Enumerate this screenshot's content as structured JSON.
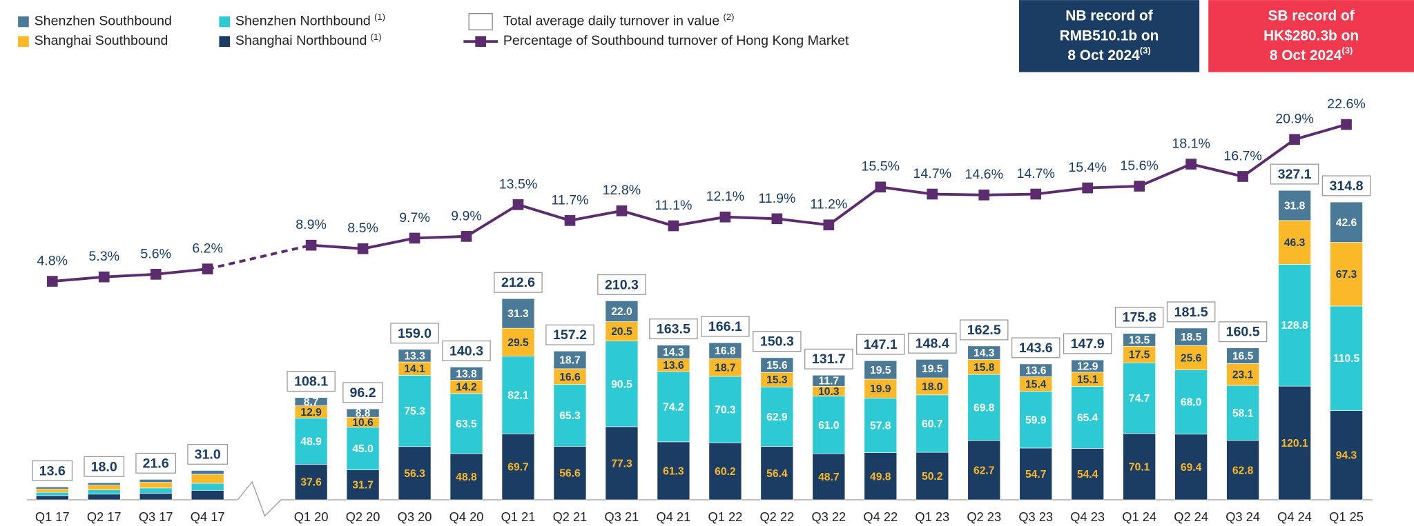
{
  "chart_data": {
    "type": "stacked_bar_line",
    "categories": [
      "Q1 17",
      "Q2 17",
      "Q3 17",
      "Q4 17",
      "Q1 20",
      "Q2 20",
      "Q3 20",
      "Q4 20",
      "Q1 21",
      "Q2 21",
      "Q3 21",
      "Q4 21",
      "Q1 22",
      "Q2 22",
      "Q3 22",
      "Q4 22",
      "Q1 23",
      "Q2 23",
      "Q3 23",
      "Q4 23",
      "Q1 24",
      "Q2 24",
      "Q3 24",
      "Q4 24",
      "Q1 25"
    ],
    "break_after": 3,
    "ylim": [
      0,
      433
    ],
    "y2lim": [
      -20,
      26.5
    ],
    "series": [
      {
        "name": "Shanghai Northbound",
        "note": "(1)",
        "color": "#1b3d63",
        "label_color": "#fbb829",
        "values": [
          4.5,
          6.0,
          7.0,
          10.0,
          37.6,
          31.7,
          56.3,
          48.8,
          69.7,
          56.6,
          77.3,
          61.3,
          60.2,
          56.4,
          48.7,
          49.8,
          50.2,
          62.7,
          54.7,
          54.4,
          70.1,
          69.4,
          62.8,
          120.1,
          94.3
        ],
        "value_labels": [
          null,
          null,
          null,
          null,
          "37.6",
          "31.7",
          "56.3",
          "48.8",
          "69.7",
          "56.6",
          "77.3",
          "61.3",
          "60.2",
          "56.4",
          "48.7",
          "49.8",
          "50.2",
          "62.7",
          "54.7",
          "54.4",
          "70.1",
          "69.4",
          "62.8",
          "120.1",
          "94.3"
        ]
      },
      {
        "name": "Shenzhen Northbound",
        "note": "(1)",
        "color": "#2ecad4",
        "label_color": "#ffffff",
        "values": [
          3.5,
          4.5,
          5.5,
          7.5,
          48.9,
          45.0,
          75.3,
          63.5,
          82.1,
          65.3,
          90.5,
          74.2,
          70.3,
          62.9,
          61.0,
          57.8,
          60.7,
          69.8,
          59.9,
          65.4,
          74.7,
          68.0,
          58.1,
          128.8,
          110.5
        ],
        "value_labels": [
          null,
          null,
          null,
          null,
          "48.9",
          "45.0",
          "75.3",
          "63.5",
          "82.1",
          "65.3",
          "90.5",
          "74.2",
          "70.3",
          "62.9",
          "61.0",
          "57.8",
          "60.7",
          "69.8",
          "59.9",
          "65.4",
          "74.7",
          "68.0",
          "58.1",
          "128.8",
          "110.5"
        ]
      },
      {
        "name": "Shanghai Southbound",
        "color": "#fbb829",
        "label_color": "#1b3d63",
        "values": [
          3.5,
          5.0,
          6.0,
          9.5,
          12.9,
          10.6,
          14.1,
          14.2,
          29.5,
          16.6,
          20.5,
          13.6,
          18.7,
          15.3,
          10.3,
          19.9,
          18.0,
          15.8,
          15.4,
          15.1,
          17.5,
          25.6,
          23.1,
          46.3,
          67.3
        ],
        "value_labels": [
          null,
          null,
          null,
          null,
          "12.9",
          "10.6",
          "14.1",
          "14.2",
          "29.5",
          "16.6",
          "20.5",
          "13.6",
          "18.7",
          "15.3",
          "10.3",
          "19.9",
          "18.0",
          "15.8",
          "15.4",
          "15.1",
          "17.5",
          "25.6",
          "23.1",
          "46.3",
          "67.3"
        ]
      },
      {
        "name": "Shenzhen Southbound",
        "color": "#4a7a96",
        "label_color": "#ffffff",
        "values": [
          2.1,
          2.5,
          3.1,
          4.0,
          8.7,
          8.8,
          13.3,
          13.8,
          31.3,
          18.7,
          22.0,
          14.3,
          16.8,
          15.6,
          11.7,
          19.5,
          19.5,
          14.3,
          13.6,
          12.9,
          13.5,
          18.5,
          16.5,
          31.8,
          42.6
        ],
        "value_labels": [
          null,
          null,
          null,
          null,
          "8.7",
          "8.8",
          "13.3",
          "13.8",
          "31.3",
          "18.7",
          "22.0",
          "14.3",
          "16.8",
          "15.6",
          "11.7",
          "19.5",
          "19.5",
          "14.3",
          "13.6",
          "12.9",
          "13.5",
          "18.5",
          "16.5",
          "31.8",
          "42.6"
        ]
      },
      {
        "name": "Total average daily turnover in value",
        "note": "(2)",
        "kind": "total",
        "color": "#ffffff",
        "label_color": "#1b3d63",
        "values": [
          13.6,
          18.0,
          21.6,
          31.0,
          108.1,
          96.2,
          159.0,
          140.3,
          212.6,
          157.2,
          210.3,
          163.5,
          166.1,
          150.3,
          131.7,
          147.1,
          148.4,
          162.5,
          143.6,
          147.9,
          175.8,
          181.5,
          160.5,
          327.1,
          314.8
        ],
        "value_labels": [
          "13.6",
          "18.0",
          "21.6",
          "31.0",
          "108.1",
          "96.2",
          "159.0",
          "140.3",
          "212.6",
          "157.2",
          "210.3",
          "163.5",
          "166.1",
          "150.3",
          "131.7",
          "147.1",
          "148.4",
          "162.5",
          "143.6",
          "147.9",
          "175.8",
          "181.5",
          "160.5",
          "327.1",
          "314.8"
        ]
      },
      {
        "name": "Percentage of Southbound turnover of Hong Kong Market",
        "kind": "line",
        "axis": "y2",
        "color": "#5b2d6e",
        "label_color": "#1b3d63",
        "values": [
          4.8,
          5.3,
          5.6,
          6.2,
          8.9,
          8.5,
          9.7,
          9.9,
          13.5,
          11.7,
          12.8,
          11.1,
          12.1,
          11.9,
          11.2,
          15.5,
          14.7,
          14.6,
          14.7,
          15.4,
          15.6,
          18.1,
          16.7,
          20.9,
          22.6
        ],
        "value_labels": [
          "4.8%",
          "5.3%",
          "5.6%",
          "6.2%",
          "8.9%",
          "8.5%",
          "9.7%",
          "9.9%",
          "13.5%",
          "11.7%",
          "12.8%",
          "11.1%",
          "12.1%",
          "11.9%",
          "11.2%",
          "15.5%",
          "14.7%",
          "14.6%",
          "14.7%",
          "15.4%",
          "15.6%",
          "18.1%",
          "16.7%",
          "20.9%",
          "22.6%"
        ]
      }
    ],
    "annotations": [
      {
        "lines": [
          "NB record of",
          "RMB510.1b on",
          "8 Oct 2024"
        ],
        "note": "(3)",
        "color": "#1b3d63"
      },
      {
        "lines": [
          "SB record of",
          "HK$280.3b on",
          "8 Oct 2024"
        ],
        "note": "(3)",
        "color": "#f0384f"
      }
    ]
  }
}
